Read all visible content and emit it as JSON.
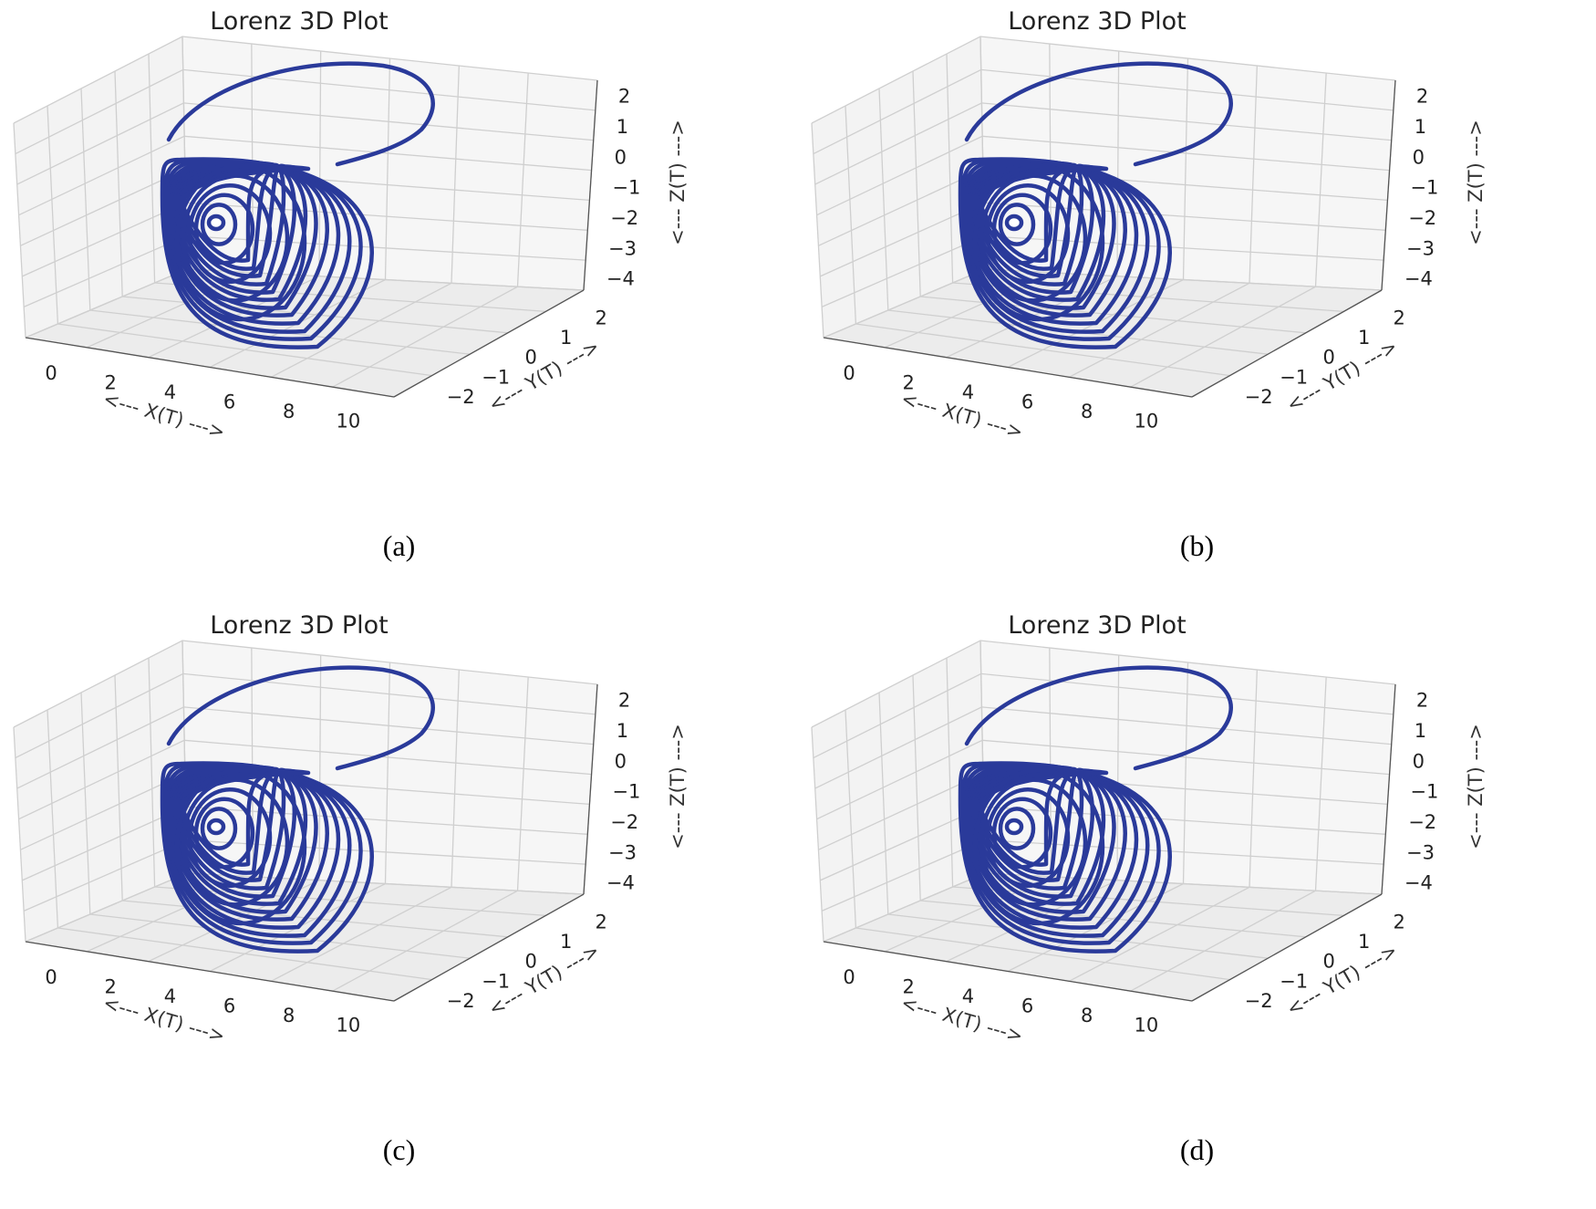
{
  "chart_data": [
    {
      "type": "line3d",
      "panel": "a",
      "caption": "(a)",
      "title": "Lorenz 3D Plot",
      "xlabel": "<--- X(T) --->",
      "ylabel": "<--- Y(T) --->",
      "zlabel": "<--- Z(T) --->",
      "xticks": [
        "0",
        "2",
        "4",
        "6",
        "8",
        "10"
      ],
      "yticks": [
        "−2",
        "−1",
        "0",
        "1",
        "2"
      ],
      "zticks": [
        "2",
        "1",
        "0",
        "−1",
        "−2",
        "−3",
        "−4"
      ],
      "xlim": [
        -0.5,
        11.5
      ],
      "ylim": [
        -2.5,
        2.5
      ],
      "zlim": [
        -4,
        2.6
      ],
      "series": [
        {
          "name": "trajectory",
          "color": "#2a3a9a",
          "inner_loops": 12
        }
      ]
    },
    {
      "type": "line3d",
      "panel": "b",
      "caption": "(b)",
      "title": "Lorenz 3D Plot",
      "xlabel": "<--- X(T) --->",
      "ylabel": "<--- Y(T) --->",
      "zlabel": "<--- Z(T) --->",
      "xticks": [
        "0",
        "2",
        "4",
        "6",
        "8",
        "10"
      ],
      "yticks": [
        "−2",
        "−1",
        "0",
        "1",
        "2"
      ],
      "zticks": [
        "2",
        "1",
        "0",
        "−1",
        "−2",
        "−3",
        "−4"
      ],
      "xlim": [
        -0.5,
        11.5
      ],
      "ylim": [
        -2.5,
        2.5
      ],
      "zlim": [
        -4,
        2.6
      ],
      "series": [
        {
          "name": "trajectory",
          "color": "#2a3a9a",
          "inner_loops": 12
        }
      ]
    },
    {
      "type": "line3d",
      "panel": "c",
      "caption": "(c)",
      "title": "Lorenz 3D Plot",
      "xlabel": "<--- X(T) --->",
      "ylabel": "<--- Y(T) --->",
      "zlabel": "<--- Z(T) --->",
      "xticks": [
        "0",
        "2",
        "4",
        "6",
        "8",
        "10"
      ],
      "yticks": [
        "−2",
        "−1",
        "0",
        "1",
        "2"
      ],
      "zticks": [
        "2",
        "1",
        "0",
        "−1",
        "−2",
        "−3",
        "−4"
      ],
      "xlim": [
        -0.5,
        11.5
      ],
      "ylim": [
        -2.5,
        2.5
      ],
      "zlim": [
        -4,
        2.6
      ],
      "series": [
        {
          "name": "trajectory",
          "color": "#2a3a9a",
          "inner_loops": 12
        }
      ]
    },
    {
      "type": "line3d",
      "panel": "d",
      "caption": "(d)",
      "title": "Lorenz 3D Plot",
      "xlabel": "<--- X(T) --->",
      "ylabel": "<--- Y(T) --->",
      "zlabel": "<--- Z(T) --->",
      "xticks": [
        "0",
        "2",
        "4",
        "6",
        "8",
        "10"
      ],
      "yticks": [
        "−2",
        "−1",
        "0",
        "1",
        "2"
      ],
      "zticks": [
        "2",
        "1",
        "0",
        "−1",
        "−2",
        "−3",
        "−4"
      ],
      "xlim": [
        -0.5,
        11.5
      ],
      "ylim": [
        -2.5,
        2.5
      ],
      "zlim": [
        -4,
        2.6
      ],
      "series": [
        {
          "name": "trajectory",
          "color": "#2a3a9a",
          "inner_loops": 12
        }
      ]
    }
  ]
}
